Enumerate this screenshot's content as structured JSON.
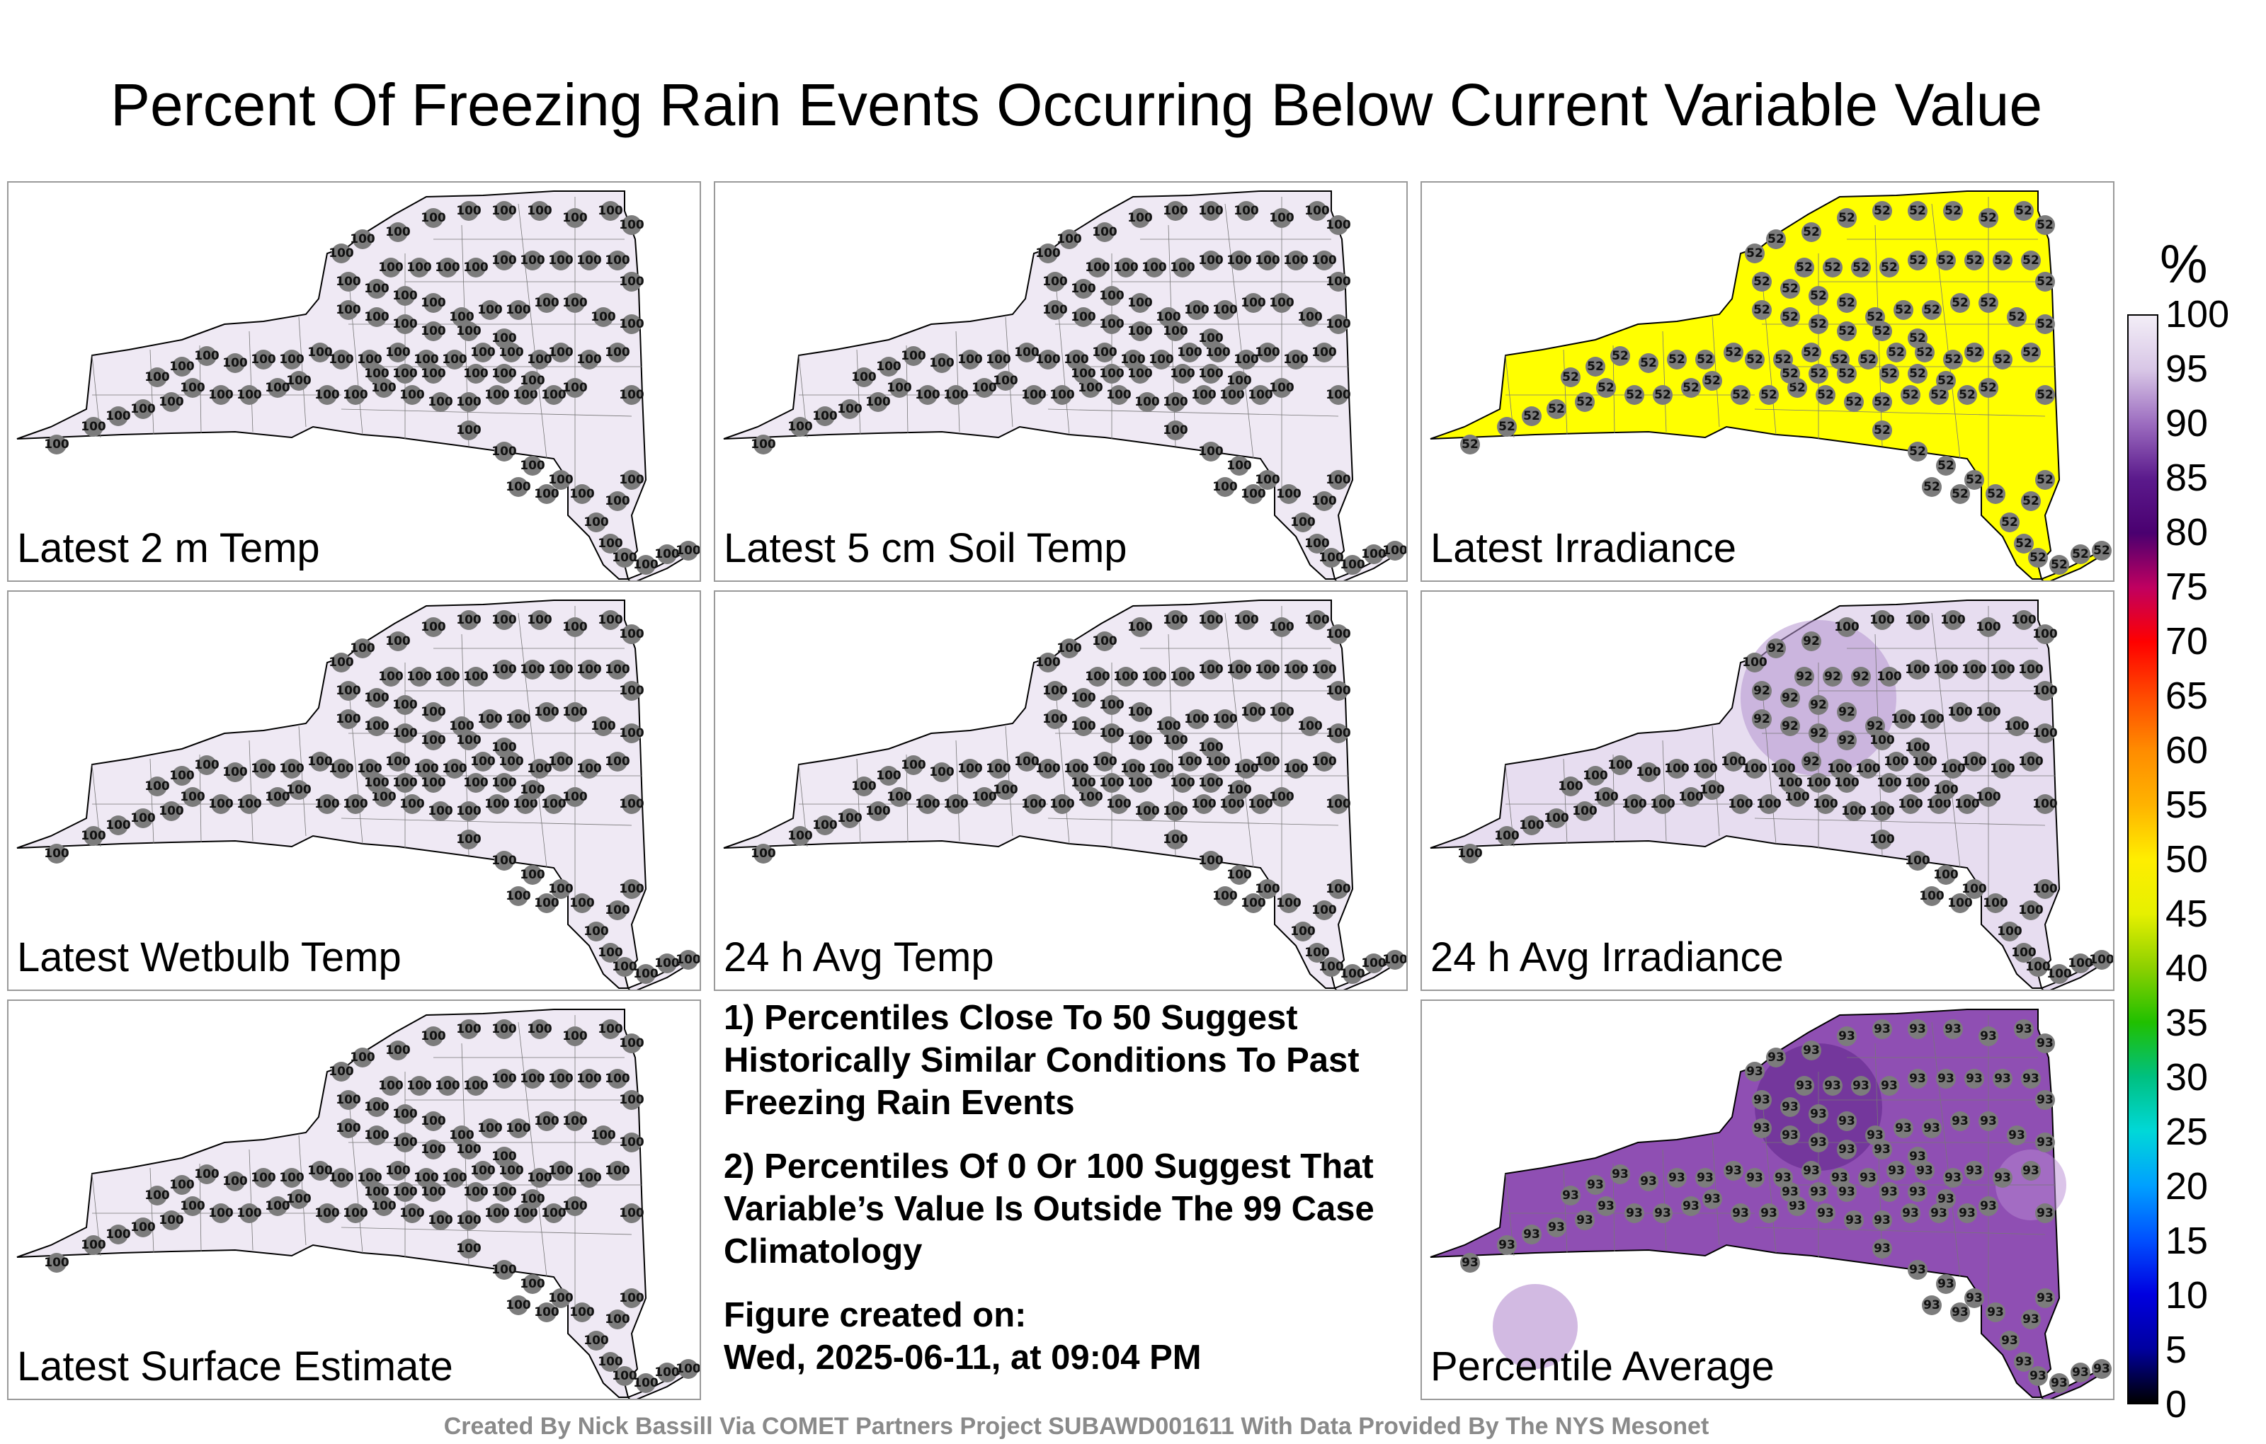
{
  "title": "Percent Of Freezing Rain Events Occurring Below Current Variable Value",
  "footer": "Created By Nick Bassill Via COMET Partners Project SUBAWD001611 With Data Provided By The NYS Mesonet",
  "colorbar": {
    "unit": "%",
    "ticks": [
      "100",
      "95",
      "90",
      "85",
      "80",
      "75",
      "70",
      "65",
      "60",
      "55",
      "50",
      "45",
      "40",
      "35",
      "30",
      "25",
      "20",
      "15",
      "10",
      "5",
      "0"
    ],
    "gradient": [
      "#f3eef7",
      "#d8c6e6",
      "#9b6bbf",
      "#5b1a8c",
      "#4a0070",
      "#c00060",
      "#ff0000",
      "#ff4a00",
      "#ff8c00",
      "#ffb300",
      "#ffee00",
      "#e6f000",
      "#8cd000",
      "#20c000",
      "#00c080",
      "#00d8d8",
      "#00a0ff",
      "#0050ff",
      "#0000e0",
      "#0000a0",
      "#000000"
    ]
  },
  "panels": [
    {
      "label": "Latest 2 m Temp",
      "fill": "#efe9f4",
      "value": "100"
    },
    {
      "label": "Latest 5 cm Soil Temp",
      "fill": "#efe9f4",
      "value": "100"
    },
    {
      "label": "Latest Irradiance",
      "fill": "#ffff00",
      "value": "52"
    },
    {
      "label": "Latest Wetbulb Temp",
      "fill": "#efe9f4",
      "value": "100"
    },
    {
      "label": "24 h Avg Temp",
      "fill": "#efe9f4",
      "value": "100"
    },
    {
      "label": "24 h Avg Irradiance",
      "fill": "#e7ddf0",
      "value": "100"
    },
    {
      "label": "Latest Surface Estimate",
      "fill": "#efe9f4",
      "value": "100"
    },
    {
      "label": "Percentile Average",
      "fill": "#8f4fb3",
      "value": "93"
    }
  ],
  "notes": {
    "line1": "1) Percentiles Close To 50 Suggest Historically Similar Conditions To Past Freezing Rain Events",
    "line2": "2) Percentiles Of 0 Or 100 Suggest That Variable’s Value Is Outside The 99 Case Climatology",
    "created_label": "Figure created on:",
    "created_date": "Wed, 2025-06-11, at 09:04 PM"
  }
}
